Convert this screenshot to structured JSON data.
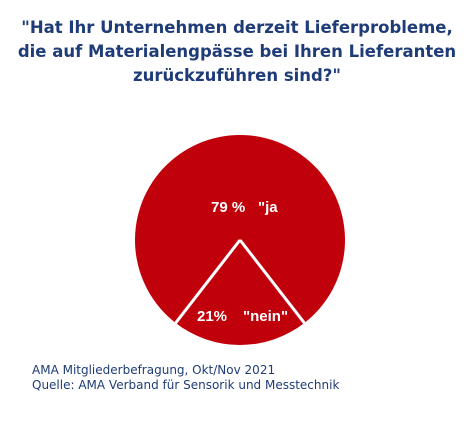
{
  "chart_data": {
    "type": "pie",
    "title_lines": [
      "\"Hat Ihr Unternehmen derzeit Lieferprobleme,",
      "die auf Materialengpässe bei Ihren Lieferanten",
      "zurückzuführen sind?\""
    ],
    "slices": [
      {
        "label": "\"ja",
        "percent_label": "79 %",
        "value": 79,
        "color": "#c0000b"
      },
      {
        "label": "\"nein\"",
        "percent_label": "21%",
        "value": 21,
        "color": "#c0000b"
      }
    ],
    "separator_color": "#ffffff",
    "label_color": "#ffffff"
  },
  "footer": {
    "line1": "AMA Mitgliederbefragung, Okt/Nov 2021",
    "line2": "Quelle: AMA Verband für Sensorik und Messtechnik"
  },
  "colors": {
    "title": "#1f3c78",
    "pie": "#c0000b",
    "background": "#ffffff"
  }
}
